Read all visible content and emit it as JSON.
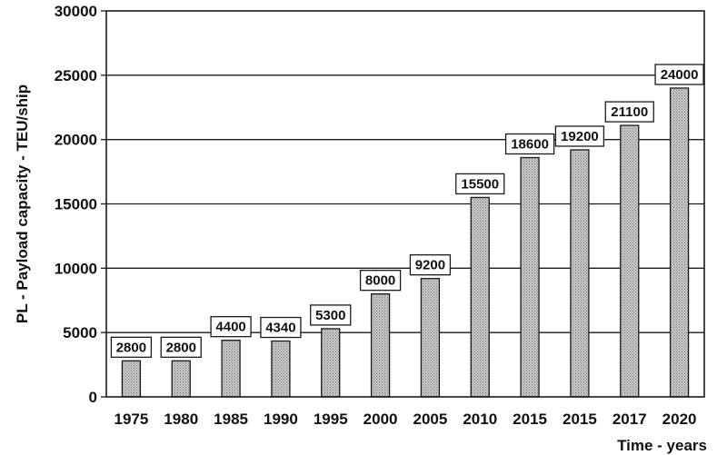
{
  "chart_data": {
    "type": "bar",
    "categories": [
      "1975",
      "1980",
      "1985",
      "1990",
      "1995",
      "2000",
      "2005",
      "2010",
      "2015",
      "2015",
      "2017",
      "2020"
    ],
    "values": [
      2800,
      2800,
      4400,
      4340,
      5300,
      8000,
      9200,
      15500,
      18600,
      19200,
      21100,
      24000
    ],
    "data_labels": [
      "2800",
      "2800",
      "4400",
      "4340",
      "5300",
      "8000",
      "9200",
      "15500",
      "18600",
      "19200",
      "21100",
      "24000"
    ],
    "xlabel": "Time - years",
    "ylabel": "PL - Payload capacity - TEU/ship",
    "ylim": [
      0,
      30000
    ],
    "yticks": [
      0,
      5000,
      10000,
      15000,
      20000,
      25000,
      30000
    ],
    "grid": true,
    "legend": "none",
    "colors": {
      "bar_fill": "#b8b8b8",
      "bar_edge": "#1a1a1a",
      "grid": "#1a1a1a",
      "frame": "#1a1a1a"
    }
  }
}
